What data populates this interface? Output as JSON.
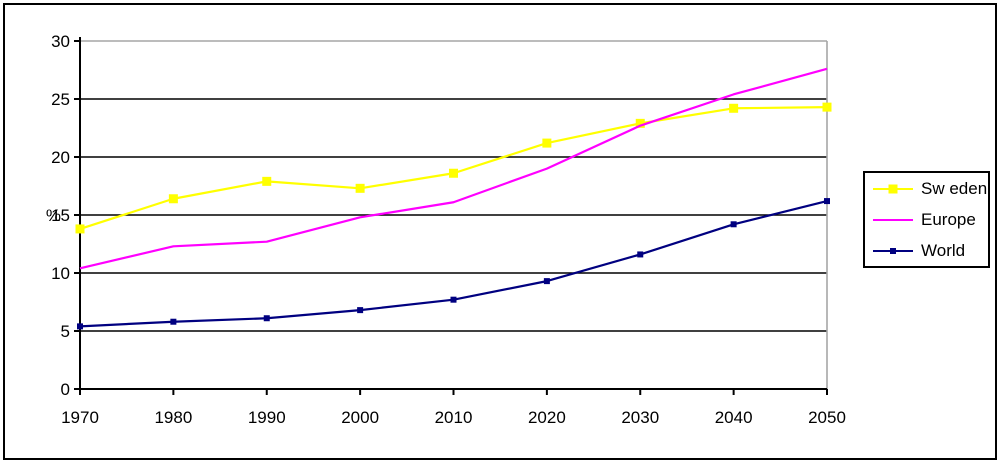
{
  "chart_data": {
    "type": "line",
    "title": "",
    "xlabel": "",
    "ylabel": "%",
    "categories": [
      "1970",
      "1980",
      "1990",
      "2000",
      "2010",
      "2020",
      "2030",
      "2040",
      "2050"
    ],
    "series": [
      {
        "name": "Sw eden",
        "color": "#FFFF00",
        "marker": "square",
        "marker_size": 9,
        "values": [
          13.8,
          16.4,
          17.9,
          17.3,
          18.6,
          21.2,
          22.9,
          24.2,
          24.3
        ]
      },
      {
        "name": "Europe",
        "color": "#FF00FF",
        "marker": "none",
        "marker_size": 0,
        "values": [
          10.4,
          12.3,
          12.7,
          14.8,
          16.1,
          19.0,
          22.7,
          25.4,
          27.6
        ]
      },
      {
        "name": "World",
        "color": "#000080",
        "marker": "square",
        "marker_size": 6,
        "values": [
          5.4,
          5.8,
          6.1,
          6.8,
          7.7,
          9.3,
          11.6,
          14.2,
          16.2
        ]
      }
    ],
    "ylim": [
      0,
      30
    ],
    "yticks": [
      0,
      5,
      10,
      15,
      20,
      25,
      30
    ],
    "grid": true,
    "legend_position": "right",
    "colors": {
      "axis": "#000000",
      "gridline": "#000000",
      "plot_border": "#a6a6a6",
      "background": "#ffffff",
      "text": "#000000"
    }
  }
}
